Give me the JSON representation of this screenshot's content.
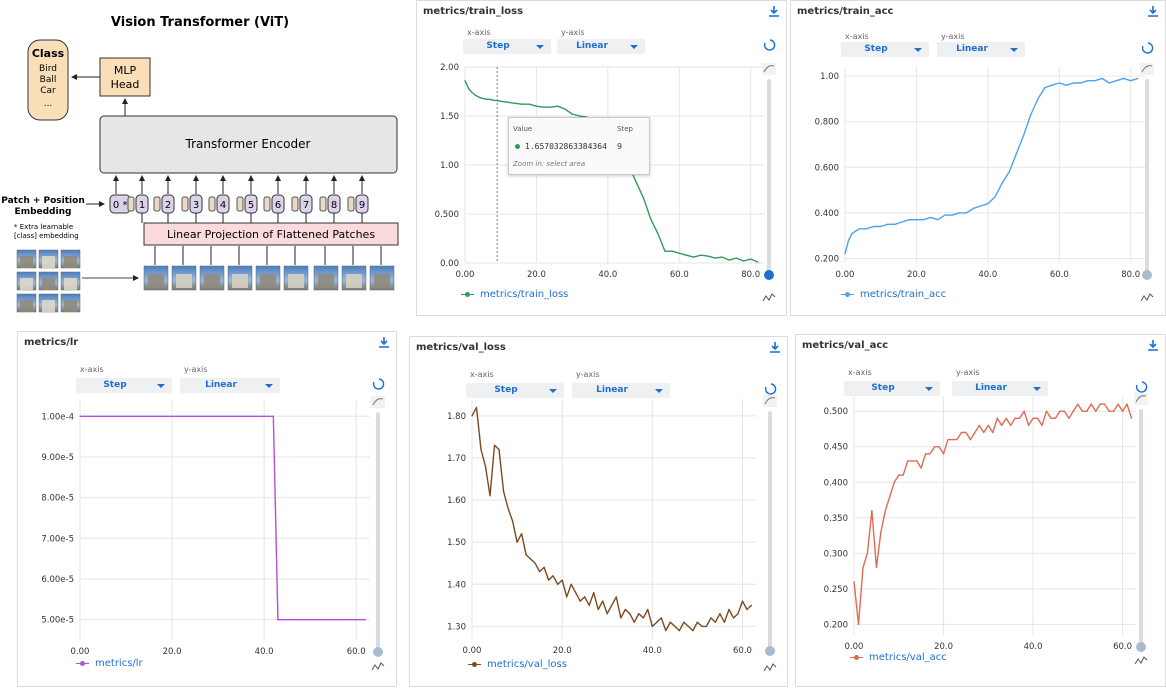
{
  "vit": {
    "title": "Vision Transformer (ViT)",
    "class_box": {
      "head": "Class",
      "items": [
        "Bird",
        "Ball",
        "Car",
        "..."
      ]
    },
    "mlp_head": [
      "MLP",
      "Head"
    ],
    "encoder": "Transformer Encoder",
    "patch_embed_label": [
      "Patch + Position",
      "Embedding"
    ],
    "extra_note": [
      "* Extra learnable",
      "[class] embedding"
    ],
    "linear_proj": "Linear Projection of Flattened Patches",
    "tokens": [
      "0",
      "1",
      "2",
      "3",
      "4",
      "5",
      "6",
      "7",
      "8",
      "9"
    ],
    "class_star": "*"
  },
  "common": {
    "xaxis_label": "x-axis",
    "yaxis_label": "y-axis",
    "x_value": "Step",
    "y_value": "Linear"
  },
  "tooltip": {
    "value_hdr": "Value",
    "step_hdr": "Step",
    "value": "1.657032863384364",
    "step": "9",
    "hint": "Zoom in: select area"
  },
  "chart_data": [
    {
      "id": "train_loss",
      "type": "line",
      "title": "metrics/train_loss",
      "legend": "metrics/train_loss",
      "color": "#2e9c5b",
      "xlim": [
        0,
        84
      ],
      "ylim": [
        0,
        2.0
      ],
      "xticks": [
        "0.00",
        "20.0",
        "40.0",
        "60.0",
        "80.0"
      ],
      "xtick_vals": [
        0,
        20,
        40,
        60,
        80
      ],
      "yticks": [
        "0.00",
        "0.500",
        "1.00",
        "1.50",
        "2.00"
      ],
      "ytick_vals": [
        0,
        0.5,
        1.0,
        1.5,
        2.0
      ],
      "x": [
        0,
        1,
        2,
        3,
        4,
        5,
        6,
        7,
        8,
        9,
        10,
        12,
        14,
        16,
        18,
        20,
        22,
        24,
        26,
        28,
        30,
        32,
        34,
        36,
        38,
        40,
        42,
        44,
        46,
        48,
        50,
        52,
        54,
        56,
        58,
        60,
        62,
        64,
        66,
        68,
        70,
        72,
        74,
        76,
        78,
        80,
        82
      ],
      "y": [
        1.86,
        1.78,
        1.74,
        1.71,
        1.69,
        1.68,
        1.67,
        1.67,
        1.66,
        1.657,
        1.65,
        1.64,
        1.63,
        1.62,
        1.62,
        1.6,
        1.59,
        1.59,
        1.6,
        1.57,
        1.52,
        1.5,
        1.49,
        1.45,
        1.46,
        1.36,
        1.28,
        1.15,
        0.98,
        0.82,
        0.66,
        0.45,
        0.3,
        0.12,
        0.12,
        0.1,
        0.08,
        0.06,
        0.08,
        0.07,
        0.05,
        0.06,
        0.03,
        0.05,
        0.02,
        0.04,
        0.01
      ]
    },
    {
      "id": "train_acc",
      "type": "line",
      "title": "metrics/train_acc",
      "legend": "metrics/train_acc",
      "color": "#4aa3ee",
      "xlim": [
        0,
        84
      ],
      "ylim": [
        0.18,
        1.04
      ],
      "xticks": [
        "0.00",
        "20.0",
        "40.0",
        "60.0",
        "80.0"
      ],
      "xtick_vals": [
        0,
        20,
        40,
        60,
        80
      ],
      "yticks": [
        "0.200",
        "0.400",
        "0.600",
        "0.800",
        "1.00"
      ],
      "ytick_vals": [
        0.2,
        0.4,
        0.6,
        0.8,
        1.0
      ],
      "x": [
        0,
        1,
        2,
        3,
        4,
        6,
        8,
        10,
        12,
        14,
        16,
        18,
        20,
        22,
        24,
        26,
        28,
        30,
        32,
        34,
        36,
        38,
        40,
        42,
        44,
        46,
        48,
        50,
        52,
        54,
        56,
        58,
        60,
        62,
        64,
        66,
        68,
        70,
        72,
        74,
        76,
        78,
        80,
        82
      ],
      "y": [
        0.22,
        0.28,
        0.31,
        0.32,
        0.33,
        0.33,
        0.34,
        0.34,
        0.35,
        0.35,
        0.36,
        0.37,
        0.37,
        0.37,
        0.38,
        0.37,
        0.39,
        0.39,
        0.4,
        0.4,
        0.42,
        0.43,
        0.44,
        0.47,
        0.53,
        0.58,
        0.66,
        0.74,
        0.83,
        0.9,
        0.95,
        0.96,
        0.97,
        0.96,
        0.97,
        0.97,
        0.98,
        0.98,
        0.99,
        0.97,
        0.98,
        0.99,
        0.98,
        0.99
      ]
    },
    {
      "id": "lr",
      "type": "line",
      "title": "metrics/lr",
      "legend": "metrics/lr",
      "color": "#b44fd6",
      "xlim": [
        0,
        63
      ],
      "ylim": [
        4.5e-05,
        0.000104
      ],
      "xticks": [
        "0.00",
        "20.0",
        "40.0",
        "60.0"
      ],
      "xtick_vals": [
        0,
        20,
        40,
        60
      ],
      "yticks": [
        "5.00e-5",
        "6.00e-5",
        "7.00e-5",
        "8.00e-5",
        "9.00e-5",
        "1.00e-4"
      ],
      "ytick_vals": [
        5e-05,
        6e-05,
        7e-05,
        8e-05,
        9e-05,
        0.0001
      ],
      "x": [
        0,
        42,
        43,
        62
      ],
      "y": [
        0.0001,
        0.0001,
        5e-05,
        5e-05
      ]
    },
    {
      "id": "val_loss",
      "type": "line",
      "title": "metrics/val_loss",
      "legend": "metrics/val_loss",
      "color": "#7b4a1e",
      "xlim": [
        0,
        63
      ],
      "ylim": [
        1.27,
        1.84
      ],
      "xticks": [
        "0.00",
        "20.0",
        "40.0",
        "60.0"
      ],
      "xtick_vals": [
        0,
        20,
        40,
        60
      ],
      "yticks": [
        "1.30",
        "1.40",
        "1.50",
        "1.60",
        "1.70",
        "1.80"
      ],
      "ytick_vals": [
        1.3,
        1.4,
        1.5,
        1.6,
        1.7,
        1.8
      ],
      "x": [
        0,
        1,
        2,
        3,
        4,
        5,
        6,
        7,
        8,
        9,
        10,
        11,
        12,
        13,
        14,
        15,
        16,
        17,
        18,
        19,
        20,
        21,
        22,
        23,
        24,
        25,
        26,
        27,
        28,
        29,
        30,
        31,
        32,
        33,
        34,
        35,
        36,
        37,
        38,
        39,
        40,
        41,
        42,
        43,
        44,
        45,
        46,
        47,
        48,
        49,
        50,
        51,
        52,
        53,
        54,
        55,
        56,
        57,
        58,
        59,
        60,
        61,
        62
      ],
      "y": [
        1.8,
        1.82,
        1.72,
        1.68,
        1.61,
        1.73,
        1.72,
        1.62,
        1.58,
        1.55,
        1.5,
        1.52,
        1.47,
        1.46,
        1.45,
        1.43,
        1.44,
        1.41,
        1.42,
        1.4,
        1.41,
        1.37,
        1.4,
        1.38,
        1.36,
        1.37,
        1.35,
        1.38,
        1.34,
        1.36,
        1.33,
        1.35,
        1.37,
        1.32,
        1.34,
        1.33,
        1.31,
        1.33,
        1.32,
        1.34,
        1.3,
        1.31,
        1.32,
        1.29,
        1.31,
        1.3,
        1.29,
        1.31,
        1.3,
        1.29,
        1.31,
        1.3,
        1.3,
        1.32,
        1.31,
        1.33,
        1.31,
        1.34,
        1.32,
        1.33,
        1.36,
        1.34,
        1.35
      ]
    },
    {
      "id": "val_acc",
      "type": "line",
      "title": "metrics/val_acc",
      "legend": "metrics/val_acc",
      "color": "#e06a55",
      "xlim": [
        0,
        63
      ],
      "ylim": [
        0.185,
        0.52
      ],
      "xticks": [
        "0.00",
        "20.0",
        "40.0",
        "60.0"
      ],
      "xtick_vals": [
        0,
        20,
        40,
        60
      ],
      "yticks": [
        "0.200",
        "0.250",
        "0.300",
        "0.350",
        "0.400",
        "0.450",
        "0.500"
      ],
      "ytick_vals": [
        0.2,
        0.25,
        0.3,
        0.35,
        0.4,
        0.45,
        0.5
      ],
      "x": [
        0,
        1,
        2,
        3,
        4,
        5,
        6,
        7,
        8,
        9,
        10,
        11,
        12,
        13,
        14,
        15,
        16,
        17,
        18,
        19,
        20,
        21,
        22,
        23,
        24,
        25,
        26,
        27,
        28,
        29,
        30,
        31,
        32,
        33,
        34,
        35,
        36,
        37,
        38,
        39,
        40,
        41,
        42,
        43,
        44,
        45,
        46,
        47,
        48,
        49,
        50,
        51,
        52,
        53,
        54,
        55,
        56,
        57,
        58,
        59,
        60,
        61,
        62
      ],
      "y": [
        0.26,
        0.2,
        0.28,
        0.3,
        0.36,
        0.28,
        0.33,
        0.36,
        0.38,
        0.4,
        0.41,
        0.41,
        0.43,
        0.43,
        0.43,
        0.42,
        0.44,
        0.44,
        0.45,
        0.45,
        0.44,
        0.46,
        0.46,
        0.46,
        0.47,
        0.47,
        0.46,
        0.47,
        0.48,
        0.47,
        0.48,
        0.47,
        0.49,
        0.48,
        0.49,
        0.48,
        0.49,
        0.49,
        0.5,
        0.48,
        0.49,
        0.49,
        0.48,
        0.5,
        0.49,
        0.49,
        0.5,
        0.5,
        0.49,
        0.5,
        0.51,
        0.5,
        0.5,
        0.51,
        0.5,
        0.51,
        0.51,
        0.5,
        0.5,
        0.51,
        0.5,
        0.51,
        0.49
      ]
    }
  ]
}
